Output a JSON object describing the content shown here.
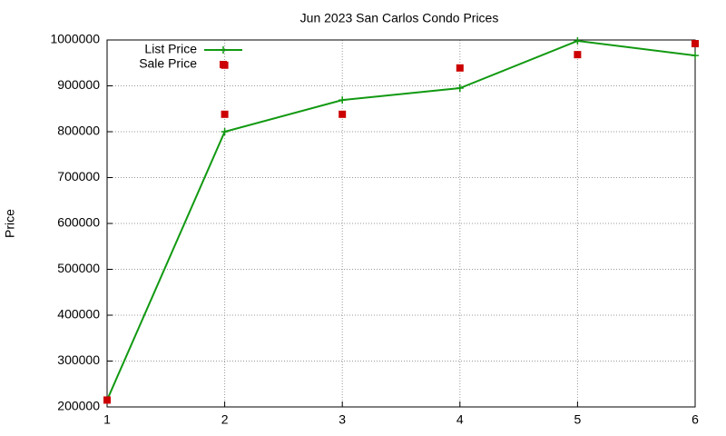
{
  "chart_data": {
    "type": "line",
    "title": "Jun 2023 San Carlos Condo Prices",
    "y_label": "Price",
    "xlim": [
      1,
      6
    ],
    "xticks": [
      1,
      2,
      3,
      4,
      5,
      6
    ],
    "ylim": [
      200000,
      1000000
    ],
    "yticks": [
      200000,
      300000,
      400000,
      500000,
      600000,
      700000,
      800000,
      900000,
      1000000
    ],
    "grid": true,
    "legend": "top-left",
    "series": [
      {
        "name": "List Price",
        "color": "#119911",
        "style": "linespoints",
        "x": [
          1,
          2,
          3,
          4,
          5,
          6
        ],
        "values": [
          215000,
          800000,
          869000,
          895000,
          998000,
          966000
        ]
      },
      {
        "name": "Sale Price",
        "color": "#cc0000",
        "style": "points",
        "x": [
          1,
          2,
          2,
          3,
          4,
          5,
          6
        ],
        "values": [
          215000,
          838000,
          945000,
          838000,
          939000,
          968000,
          992000
        ]
      }
    ]
  }
}
